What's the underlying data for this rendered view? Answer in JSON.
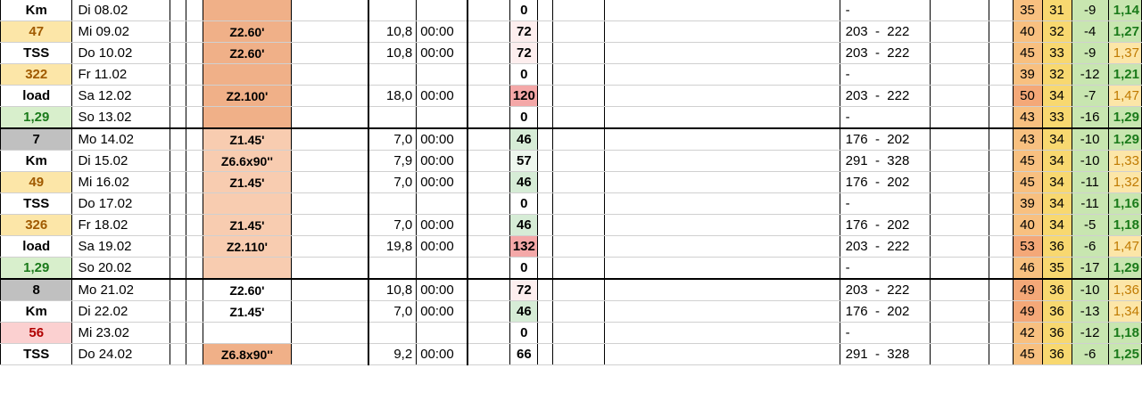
{
  "rows": [
    {
      "label": "Km",
      "label_bg": "#ffffff",
      "label_color": "#000000",
      "day": "Di 08.02",
      "workout": "",
      "wo_bg": "#f0b088",
      "km": "",
      "time": "",
      "tss": "0",
      "tss_bg": "#ffffff",
      "hr": "-",
      "atl": "35",
      "atl_bg": "#f8c080",
      "ctl": "31",
      "ctl_bg": "#f8d870",
      "tsb": "-9",
      "tsb_bg": "#c8e6b0",
      "ratio": "1,14",
      "ratio_color": "#1a7a1a",
      "ratio_bg": "#c8e6b0",
      "week_start": false
    },
    {
      "label": "47",
      "label_bg": "#fce6a8",
      "label_color": "#a05a00",
      "day": "Mi 09.02",
      "workout": "Z2.60'",
      "wo_bg": "#f0b088",
      "km": "10,8",
      "time": "00:00",
      "tss": "72",
      "tss_bg": "#fdeeee",
      "hr": "203  -  222",
      "atl": "40",
      "atl_bg": "#f8c080",
      "ctl": "32",
      "ctl_bg": "#f8d870",
      "tsb": "-4",
      "tsb_bg": "#c8e6b0",
      "ratio": "1,27",
      "ratio_color": "#1a7a1a",
      "ratio_bg": "#c8e6b0",
      "week_start": false
    },
    {
      "label": "TSS",
      "label_bg": "#ffffff",
      "label_color": "#000000",
      "day": "Do 10.02",
      "workout": "Z2.60'",
      "wo_bg": "#f0b088",
      "km": "10,8",
      "time": "00:00",
      "tss": "72",
      "tss_bg": "#fdeeee",
      "hr": "203  -  222",
      "atl": "45",
      "atl_bg": "#f8c080",
      "ctl": "33",
      "ctl_bg": "#f8d870",
      "tsb": "-9",
      "tsb_bg": "#c8e6b0",
      "ratio": "1,37",
      "ratio_color": "#c07a00",
      "ratio_bg": "#fce6a8",
      "week_start": false
    },
    {
      "label": "322",
      "label_bg": "#fce6a8",
      "label_color": "#a05a00",
      "day": "Fr 11.02",
      "workout": "",
      "wo_bg": "#f0b088",
      "km": "",
      "time": "",
      "tss": "0",
      "tss_bg": "#ffffff",
      "hr": "-",
      "atl": "39",
      "atl_bg": "#f8c080",
      "ctl": "32",
      "ctl_bg": "#f8d870",
      "tsb": "-12",
      "tsb_bg": "#c8e6b0",
      "ratio": "1,21",
      "ratio_color": "#1a7a1a",
      "ratio_bg": "#c8e6b0",
      "week_start": false
    },
    {
      "label": "load",
      "label_bg": "#ffffff",
      "label_color": "#000000",
      "day": "Sa 12.02",
      "workout": "Z2.100'",
      "wo_bg": "#f0b088",
      "km": "18,0",
      "time": "00:00",
      "tss": "120",
      "tss_bg": "#f4a8a8",
      "hr": "203  -  222",
      "atl": "50",
      "atl_bg": "#f4a878",
      "ctl": "34",
      "ctl_bg": "#f8d870",
      "tsb": "-7",
      "tsb_bg": "#c8e6b0",
      "ratio": "1,47",
      "ratio_color": "#c07a00",
      "ratio_bg": "#fce6a8",
      "week_start": false
    },
    {
      "label": "1,29",
      "label_bg": "#d8efcc",
      "label_color": "#1a7a1a",
      "day": "So 13.02",
      "workout": "",
      "wo_bg": "#f0b088",
      "km": "",
      "time": "",
      "tss": "0",
      "tss_bg": "#ffffff",
      "hr": "-",
      "atl": "43",
      "atl_bg": "#f8c080",
      "ctl": "33",
      "ctl_bg": "#f8d870",
      "tsb": "-16",
      "tsb_bg": "#c8e6b0",
      "ratio": "1,29",
      "ratio_color": "#1a7a1a",
      "ratio_bg": "#c8e6b0",
      "week_start": false
    },
    {
      "label": "7",
      "label_bg": "#c0c0c0",
      "label_color": "#000000",
      "day": "Mo 14.02",
      "workout": "Z1.45'",
      "wo_bg": "#f8ccb0",
      "km": "7,0",
      "time": "00:00",
      "tss": "46",
      "tss_bg": "#d6ecd6",
      "hr": "176  -  202",
      "atl": "43",
      "atl_bg": "#f8c080",
      "ctl": "34",
      "ctl_bg": "#f8d870",
      "tsb": "-10",
      "tsb_bg": "#c8e6b0",
      "ratio": "1,29",
      "ratio_color": "#1a7a1a",
      "ratio_bg": "#c8e6b0",
      "week_start": true
    },
    {
      "label": "Km",
      "label_bg": "#ffffff",
      "label_color": "#000000",
      "day": "Di 15.02",
      "workout": "Z6.6x90''",
      "wo_bg": "#f8ccb0",
      "km": "7,9",
      "time": "00:00",
      "tss": "57",
      "tss_bg": "#eef7ee",
      "hr": "291  -  328",
      "atl": "45",
      "atl_bg": "#f8c080",
      "ctl": "34",
      "ctl_bg": "#f8d870",
      "tsb": "-10",
      "tsb_bg": "#c8e6b0",
      "ratio": "1,33",
      "ratio_color": "#c07a00",
      "ratio_bg": "#fce6a8",
      "week_start": false
    },
    {
      "label": "49",
      "label_bg": "#fce6a8",
      "label_color": "#a05a00",
      "day": "Mi 16.02",
      "workout": "Z1.45'",
      "wo_bg": "#f8ccb0",
      "km": "7,0",
      "time": "00:00",
      "tss": "46",
      "tss_bg": "#d6ecd6",
      "hr": "176  -  202",
      "atl": "45",
      "atl_bg": "#f8c080",
      "ctl": "34",
      "ctl_bg": "#f8d870",
      "tsb": "-11",
      "tsb_bg": "#c8e6b0",
      "ratio": "1,32",
      "ratio_color": "#c07a00",
      "ratio_bg": "#fce6a8",
      "week_start": false
    },
    {
      "label": "TSS",
      "label_bg": "#ffffff",
      "label_color": "#000000",
      "day": "Do 17.02",
      "workout": "",
      "wo_bg": "#f8ccb0",
      "km": "",
      "time": "",
      "tss": "0",
      "tss_bg": "#ffffff",
      "hr": "-",
      "atl": "39",
      "atl_bg": "#f8c080",
      "ctl": "34",
      "ctl_bg": "#f8d870",
      "tsb": "-11",
      "tsb_bg": "#c8e6b0",
      "ratio": "1,16",
      "ratio_color": "#1a7a1a",
      "ratio_bg": "#c8e6b0",
      "week_start": false
    },
    {
      "label": "326",
      "label_bg": "#fce6a8",
      "label_color": "#a05a00",
      "day": "Fr 18.02",
      "workout": "Z1.45'",
      "wo_bg": "#f8ccb0",
      "km": "7,0",
      "time": "00:00",
      "tss": "46",
      "tss_bg": "#d6ecd6",
      "hr": "176  -  202",
      "atl": "40",
      "atl_bg": "#f8c080",
      "ctl": "34",
      "ctl_bg": "#f8d870",
      "tsb": "-5",
      "tsb_bg": "#c8e6b0",
      "ratio": "1,18",
      "ratio_color": "#1a7a1a",
      "ratio_bg": "#c8e6b0",
      "week_start": false
    },
    {
      "label": "load",
      "label_bg": "#ffffff",
      "label_color": "#000000",
      "day": "Sa 19.02",
      "workout": "Z2.110'",
      "wo_bg": "#f8ccb0",
      "km": "19,8",
      "time": "00:00",
      "tss": "132",
      "tss_bg": "#f4a8a8",
      "hr": "203  -  222",
      "atl": "53",
      "atl_bg": "#f4a878",
      "ctl": "36",
      "ctl_bg": "#f8d870",
      "tsb": "-6",
      "tsb_bg": "#c8e6b0",
      "ratio": "1,47",
      "ratio_color": "#c07a00",
      "ratio_bg": "#fce6a8",
      "week_start": false
    },
    {
      "label": "1,29",
      "label_bg": "#d8efcc",
      "label_color": "#1a7a1a",
      "day": "So 20.02",
      "workout": "",
      "wo_bg": "#f8ccb0",
      "km": "",
      "time": "",
      "tss": "0",
      "tss_bg": "#ffffff",
      "hr": "-",
      "atl": "46",
      "atl_bg": "#f8c080",
      "ctl": "35",
      "ctl_bg": "#f8d870",
      "tsb": "-17",
      "tsb_bg": "#c8e6b0",
      "ratio": "1,29",
      "ratio_color": "#1a7a1a",
      "ratio_bg": "#c8e6b0",
      "week_start": false
    },
    {
      "label": "8",
      "label_bg": "#c0c0c0",
      "label_color": "#000000",
      "day": "Mo 21.02",
      "workout": "Z2.60'",
      "wo_bg": "#ffffff",
      "km": "10,8",
      "time": "00:00",
      "tss": "72",
      "tss_bg": "#fdeeee",
      "hr": "203  -  222",
      "atl": "49",
      "atl_bg": "#f4a878",
      "ctl": "36",
      "ctl_bg": "#f8d870",
      "tsb": "-10",
      "tsb_bg": "#c8e6b0",
      "ratio": "1,36",
      "ratio_color": "#c07a00",
      "ratio_bg": "#fce6a8",
      "week_start": true
    },
    {
      "label": "Km",
      "label_bg": "#ffffff",
      "label_color": "#000000",
      "day": "Di 22.02",
      "workout": "Z1.45'",
      "wo_bg": "#ffffff",
      "km": "7,0",
      "time": "00:00",
      "tss": "46",
      "tss_bg": "#d6ecd6",
      "hr": "176  -  202",
      "atl": "49",
      "atl_bg": "#f4a878",
      "ctl": "36",
      "ctl_bg": "#f8d870",
      "tsb": "-13",
      "tsb_bg": "#c8e6b0",
      "ratio": "1,34",
      "ratio_color": "#c07a00",
      "ratio_bg": "#fce6a8",
      "week_start": false
    },
    {
      "label": "56",
      "label_bg": "#fbd0d0",
      "label_color": "#b00000",
      "day": "Mi 23.02",
      "workout": "",
      "wo_bg": "#ffffff",
      "km": "",
      "time": "",
      "tss": "0",
      "tss_bg": "#ffffff",
      "hr": "-",
      "atl": "42",
      "atl_bg": "#f8c080",
      "ctl": "36",
      "ctl_bg": "#f8d870",
      "tsb": "-12",
      "tsb_bg": "#c8e6b0",
      "ratio": "1,18",
      "ratio_color": "#1a7a1a",
      "ratio_bg": "#c8e6b0",
      "week_start": false
    },
    {
      "label": "TSS",
      "label_bg": "#ffffff",
      "label_color": "#000000",
      "day": "Do 24.02",
      "workout": "Z6.8x90''",
      "wo_bg": "#f0b088",
      "km": "9,2",
      "time": "00:00",
      "tss": "66",
      "tss_bg": "#ffffff",
      "hr": "291  -  328",
      "atl": "45",
      "atl_bg": "#f8c080",
      "ctl": "36",
      "ctl_bg": "#f8d870",
      "tsb": "-6",
      "tsb_bg": "#c8e6b0",
      "ratio": "1,25",
      "ratio_color": "#1a7a1a",
      "ratio_bg": "#c8e6b0",
      "week_start": false
    }
  ]
}
